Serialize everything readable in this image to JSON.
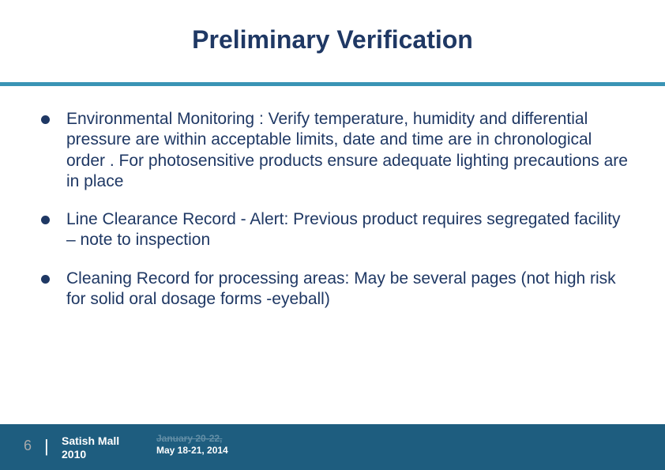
{
  "title": "Preliminary Verification",
  "bullets": [
    "Environmental Monitoring : Verify temperature, humidity and differential pressure are within acceptable limits, date and time are in chronological order . For photosensitive products ensure adequate lighting precautions are in place",
    "Line Clearance Record - Alert: Previous product requires segregated facility – note to inspection",
    "Cleaning Record for processing areas: May be several pages (not high risk for solid oral dosage forms -eyeball)"
  ],
  "footer": {
    "page_number": "6",
    "author_line1": "Satish Mall",
    "author_line2": "2010",
    "date_struck": "January 20-22,",
    "date_current": "May 18-21, 2014"
  },
  "colors": {
    "title_text": "#1f3864",
    "underline": "#3a94b5",
    "body_text": "#1f3864",
    "footer_bg": "#1e5d7f",
    "footer_page": "#a9a9a9",
    "footer_text": "#ffffff",
    "background": "#ffffff"
  },
  "typography": {
    "title_fontsize": 32,
    "body_fontsize": 21,
    "footer_page_fontsize": 18,
    "footer_author_fontsize": 14,
    "footer_date_fontsize": 12
  }
}
